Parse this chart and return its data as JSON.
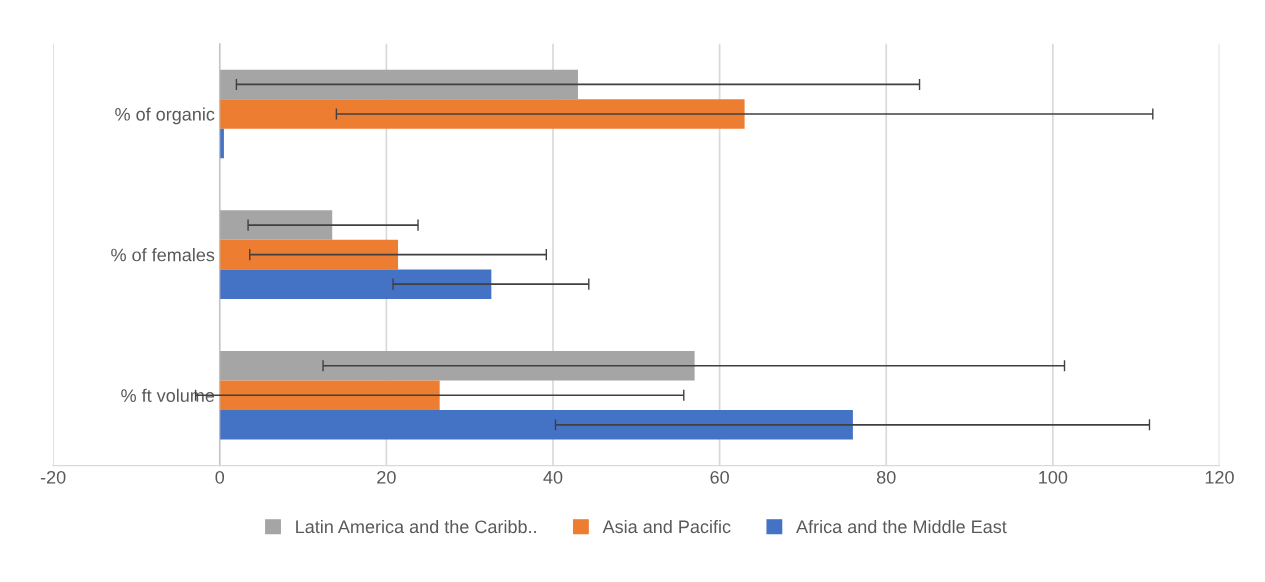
{
  "chart_data": {
    "type": "bar",
    "orientation": "horizontal",
    "categories": [
      "% of organic",
      "% of females",
      "% ft volume"
    ],
    "series": [
      {
        "name": "Latin America and the Caribb..",
        "color": "#a5a5a5",
        "values": [
          43,
          13.5,
          57
        ],
        "errors": [
          [
            2,
            84
          ],
          [
            3.4,
            23.8
          ],
          [
            12.4,
            101.4
          ]
        ]
      },
      {
        "name": "Asia and Pacific",
        "color": "#ed7d31",
        "values": [
          63,
          21.4,
          26.4
        ],
        "errors": [
          [
            14,
            112
          ],
          [
            3.6,
            39.2
          ],
          [
            -2.9,
            55.7
          ]
        ]
      },
      {
        "name": "Africa and the Middle East",
        "color": "#4472c4",
        "values": [
          0.5,
          32.6,
          76
        ],
        "errors": [
          null,
          [
            20.8,
            44.3
          ],
          [
            40.3,
            111.6
          ]
        ]
      }
    ],
    "xlim": [
      -20,
      120
    ],
    "xticks": [
      -20,
      0,
      20,
      40,
      60,
      80,
      100,
      120
    ],
    "grid": "x",
    "legend": "bottom"
  }
}
